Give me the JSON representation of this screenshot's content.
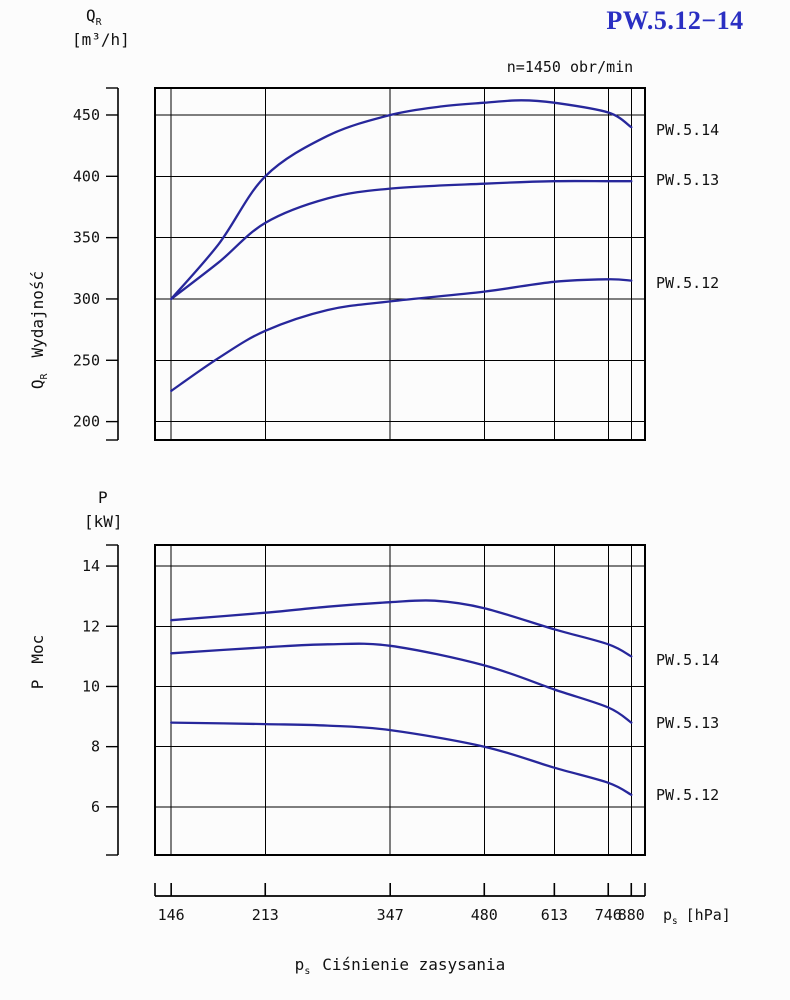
{
  "title": "PW.5.12−14",
  "subtitle": "n=1450 obr/min",
  "colors": {
    "curve": "#27279b",
    "title": "#2a2fc2",
    "grid": "#000000"
  },
  "labels": {
    "top_symbol": "Q",
    "top_symbol_sub": "R",
    "top_unit": "[m³/h]",
    "top_axis_name": "Wydajność",
    "bottom_symbol": "P",
    "bottom_symbol_sub": "",
    "bottom_unit": "[kW]",
    "bottom_axis_name": "Moc",
    "x_symbol": "p",
    "x_symbol_sub": "s",
    "x_unit": "[hPa]",
    "x_caption": "Ciśnienie  zasysania"
  },
  "chart_data": [
    {
      "type": "line",
      "name": "capacity",
      "y_axis": "Q_R Wydajność [m³/h]",
      "x_axis": "p_s [hPa]",
      "legend_position": "right",
      "grid": true,
      "y_ticks": [
        200,
        250,
        300,
        350,
        400,
        450
      ],
      "y_range": [
        185,
        472
      ],
      "x_values": [
        146,
        213,
        347,
        480,
        613,
        746,
        880
      ],
      "series": [
        {
          "name": "PW.5.14",
          "points": [
            [
              146,
              300
            ],
            [
              180,
              345
            ],
            [
              213,
              400
            ],
            [
              280,
              433
            ],
            [
              347,
              450
            ],
            [
              420,
              457
            ],
            [
              480,
              460
            ],
            [
              550,
              462
            ],
            [
              613,
              460
            ],
            [
              746,
              452
            ],
            [
              880,
              440
            ]
          ]
        },
        {
          "name": "PW.5.13",
          "points": [
            [
              146,
              300
            ],
            [
              180,
              330
            ],
            [
              213,
              362
            ],
            [
              280,
              382
            ],
            [
              347,
              390
            ],
            [
              480,
              394
            ],
            [
              613,
              396
            ],
            [
              746,
              396
            ],
            [
              880,
              396
            ]
          ]
        },
        {
          "name": "PW.5.12",
          "points": [
            [
              146,
              225
            ],
            [
              180,
              252
            ],
            [
              213,
              274
            ],
            [
              280,
              291
            ],
            [
              347,
              298
            ],
            [
              480,
              306
            ],
            [
              613,
              314
            ],
            [
              746,
              316
            ],
            [
              880,
              315
            ]
          ]
        }
      ]
    },
    {
      "type": "line",
      "name": "power",
      "y_axis": "P Moc [kW]",
      "x_axis": "p_s [hPa]",
      "legend_position": "right",
      "grid": true,
      "y_ticks": [
        6,
        8,
        10,
        12,
        14
      ],
      "y_range": [
        4.4,
        14.7
      ],
      "x_values": [
        146,
        213,
        347,
        480,
        613,
        746,
        880
      ],
      "series": [
        {
          "name": "PW.5.14",
          "points": [
            [
              146,
              12.2
            ],
            [
              213,
              12.45
            ],
            [
              280,
              12.65
            ],
            [
              347,
              12.8
            ],
            [
              410,
              12.85
            ],
            [
              480,
              12.6
            ],
            [
              613,
              11.9
            ],
            [
              746,
              11.4
            ],
            [
              880,
              11.0
            ]
          ]
        },
        {
          "name": "PW.5.13",
          "points": [
            [
              146,
              11.1
            ],
            [
              213,
              11.3
            ],
            [
              280,
              11.4
            ],
            [
              347,
              11.35
            ],
            [
              480,
              10.7
            ],
            [
              613,
              9.9
            ],
            [
              746,
              9.3
            ],
            [
              880,
              8.8
            ]
          ]
        },
        {
          "name": "PW.5.12",
          "points": [
            [
              146,
              8.8
            ],
            [
              213,
              8.75
            ],
            [
              280,
              8.7
            ],
            [
              347,
              8.55
            ],
            [
              480,
              8.0
            ],
            [
              613,
              7.3
            ],
            [
              746,
              6.8
            ],
            [
              880,
              6.4
            ]
          ]
        }
      ]
    }
  ]
}
